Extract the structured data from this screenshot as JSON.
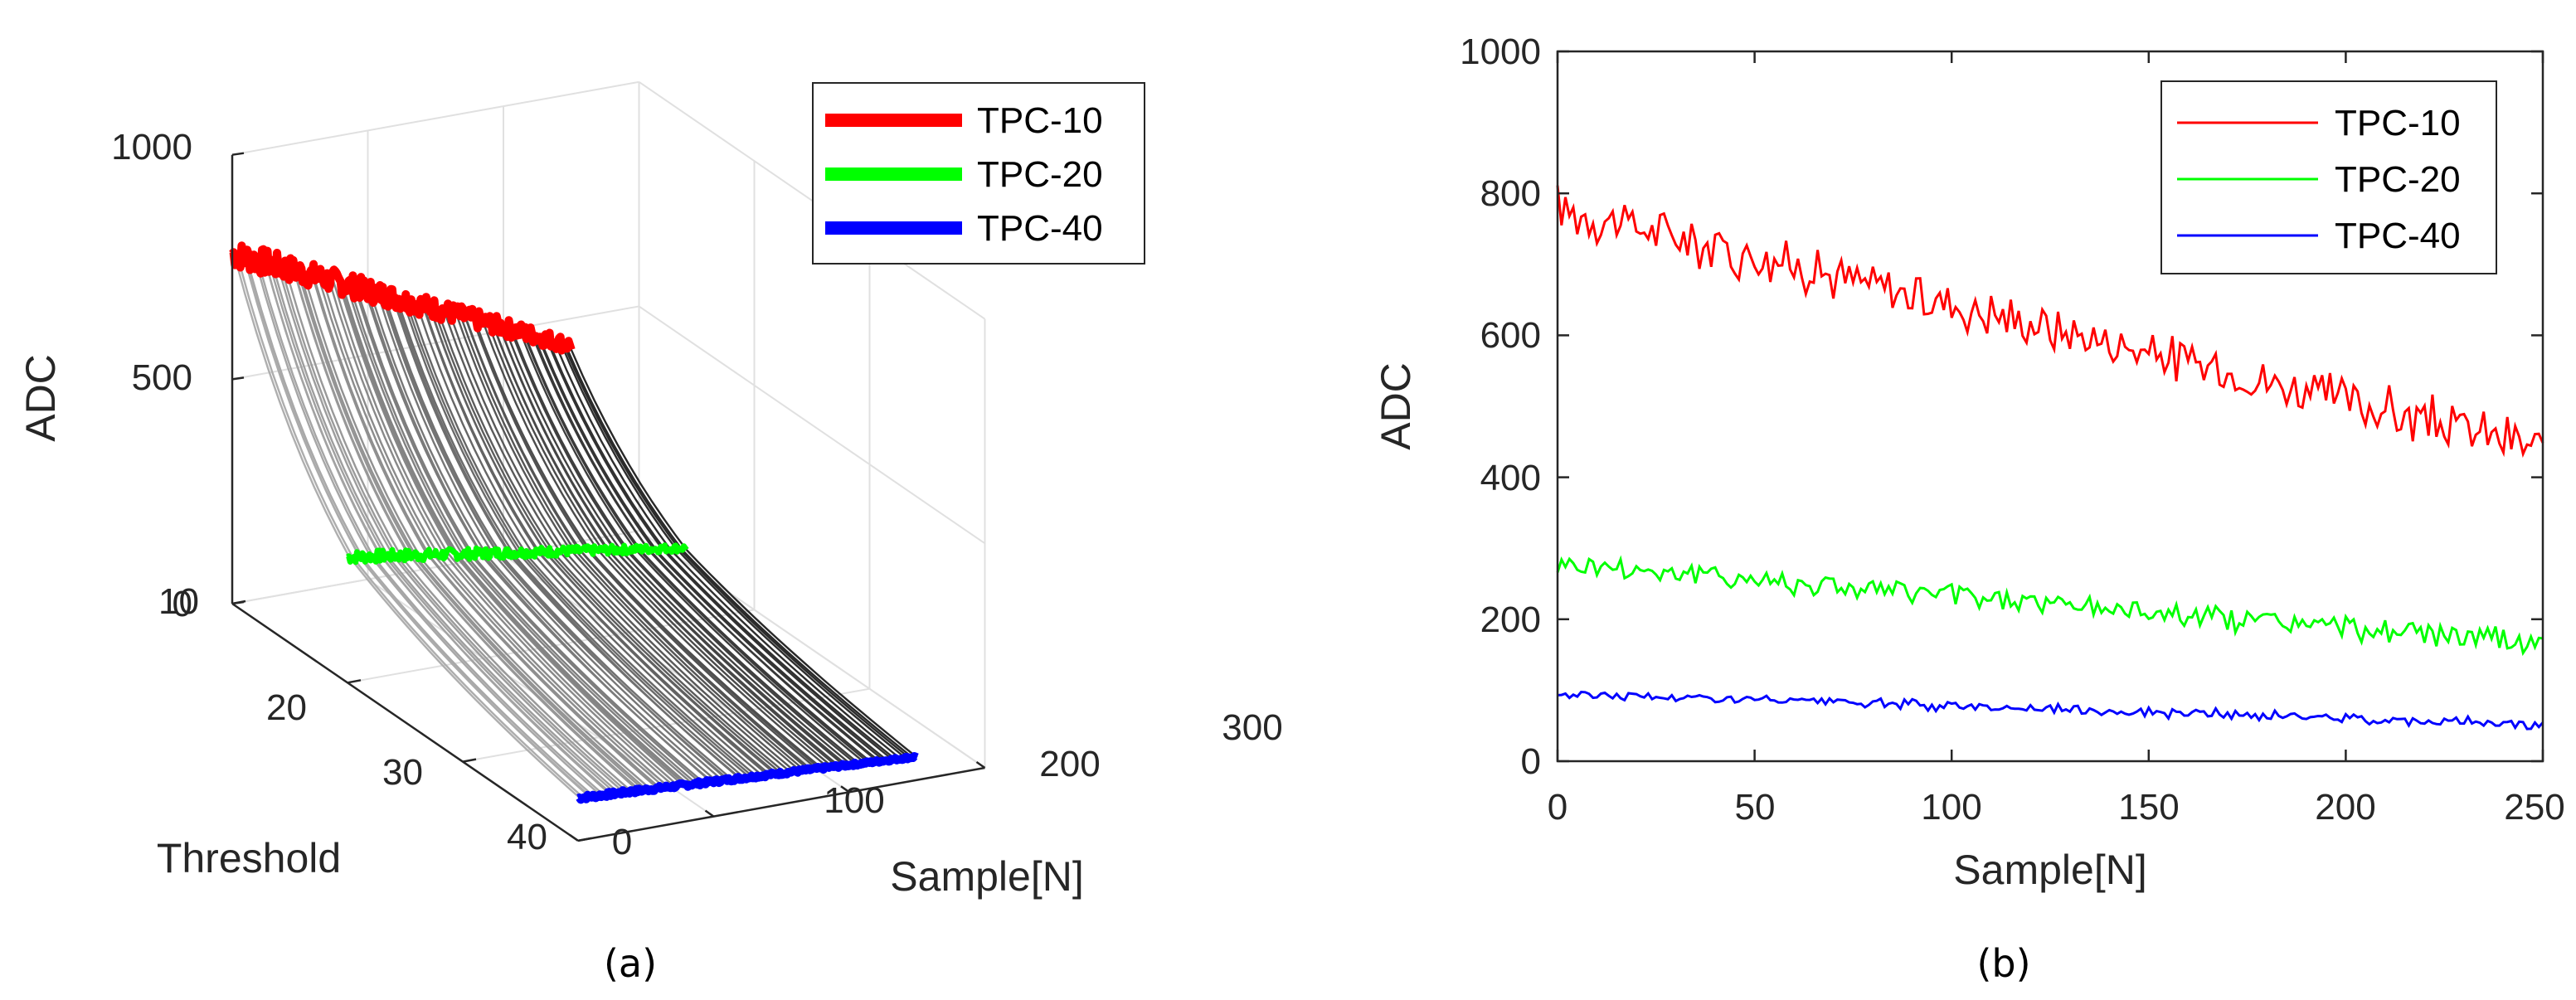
{
  "chart_data": [
    {
      "type": "surface3d",
      "caption": "(a)",
      "zlabel": "ADC",
      "ylabel": "Threshold",
      "xlabel": "Sample[N]",
      "zticks": [
        "0",
        "500",
        "1000"
      ],
      "yticks": [
        "10",
        "20",
        "30",
        "40"
      ],
      "xticks": [
        "0",
        "100",
        "200",
        "300"
      ],
      "zlim": [
        0,
        1000
      ],
      "ylim": [
        10,
        40
      ],
      "xlim": [
        0,
        300
      ],
      "n_samples": 250,
      "legend_loc": "top-right",
      "series": [
        {
          "name": "TPC-10",
          "threshold": 10,
          "color": "#ff0000",
          "start": 780,
          "end": 440
        },
        {
          "name": "TPC-20",
          "threshold": 20,
          "color": "#00ff00",
          "start": 280,
          "end": 165
        },
        {
          "name": "TPC-40",
          "threshold": 40,
          "color": "#0000ff",
          "start": 95,
          "end": 52
        }
      ]
    },
    {
      "type": "line",
      "caption": "(b)",
      "ylabel": "ADC",
      "xlabel": "Sample[N]",
      "yticks": [
        "0",
        "200",
        "400",
        "600",
        "800",
        "1000"
      ],
      "xticks": [
        "0",
        "50",
        "100",
        "150",
        "200",
        "250"
      ],
      "ylim": [
        0,
        1000
      ],
      "xlim": [
        0,
        250
      ],
      "legend_loc": "top-right",
      "series": [
        {
          "name": "TPC-10",
          "color": "#ff0000",
          "start": 780,
          "end": 440,
          "noise": 60
        },
        {
          "name": "TPC-20",
          "color": "#00ff00",
          "start": 280,
          "end": 165,
          "noise": 30
        },
        {
          "name": "TPC-40",
          "color": "#0000ff",
          "start": 95,
          "end": 52,
          "noise": 12
        }
      ]
    }
  ]
}
